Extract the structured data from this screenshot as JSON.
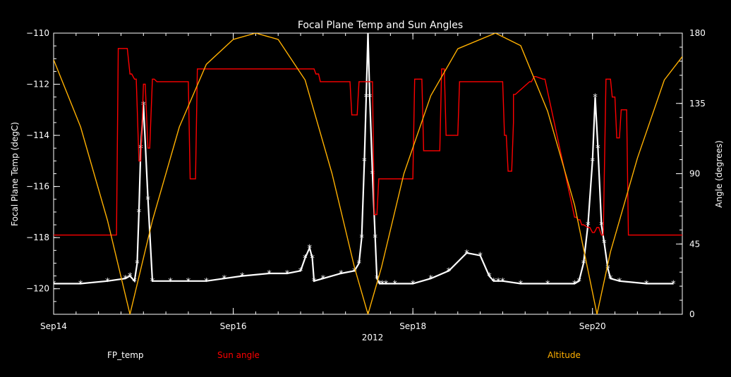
{
  "chart_data": {
    "type": "line",
    "title": "Focal Plane Temp and Sun Angles",
    "xlabel": "2012",
    "ylabel_left": "Focal Plane Temp (degC)",
    "ylabel_right": "Angle (degrees)",
    "x_range": [
      14.0,
      21.0
    ],
    "ylim_left": [
      -121,
      -110
    ],
    "ylim_right": [
      0,
      180
    ],
    "x_ticks": [
      {
        "value": 14.0,
        "label": "Sep14"
      },
      {
        "value": 16.0,
        "label": "Sep16"
      },
      {
        "value": 18.0,
        "label": "Sep18"
      },
      {
        "value": 20.0,
        "label": "Sep20"
      }
    ],
    "x_minor_step": 0.25,
    "y_left_ticks": [
      -120,
      -118,
      -116,
      -114,
      -112,
      -110
    ],
    "y_left_tick_labels": [
      "−120",
      "−118",
      "−116",
      "−114",
      "−112",
      "−110"
    ],
    "y_left_minor_step": 0.5,
    "y_right_ticks": [
      0,
      45,
      90,
      135,
      180
    ],
    "y_right_tick_labels": [
      "0",
      "45",
      "90",
      "135",
      "180"
    ],
    "y_right_minor_step": 9,
    "grid": false,
    "series": [
      {
        "name": "FP_temp",
        "color": "#ffffff",
        "axis": "left",
        "marker": "asterisk",
        "x": [
          14.0,
          14.3,
          14.6,
          14.8,
          14.85,
          14.9,
          14.93,
          14.95,
          14.97,
          15.0,
          15.05,
          15.1,
          15.3,
          15.5,
          15.7,
          15.9,
          16.1,
          16.4,
          16.6,
          16.75,
          16.8,
          16.85,
          16.88,
          16.9,
          17.0,
          17.2,
          17.35,
          17.4,
          17.43,
          17.46,
          17.48,
          17.5,
          17.52,
          17.55,
          17.58,
          17.6,
          17.63,
          17.66,
          17.7,
          17.8,
          18.0,
          18.2,
          18.4,
          18.6,
          18.75,
          18.85,
          18.9,
          18.95,
          19.0,
          19.2,
          19.5,
          19.8,
          19.85,
          19.9,
          19.95,
          20.0,
          20.03,
          20.06,
          20.1,
          20.13,
          20.17,
          20.2,
          20.3,
          20.6,
          20.9
        ],
        "y": [
          -119.8,
          -119.8,
          -119.7,
          -119.6,
          -119.5,
          -119.7,
          -119.0,
          -117.0,
          -114.5,
          -112.8,
          -116.5,
          -119.7,
          -119.7,
          -119.7,
          -119.7,
          -119.6,
          -119.5,
          -119.4,
          -119.4,
          -119.3,
          -118.8,
          -118.4,
          -118.8,
          -119.7,
          -119.6,
          -119.4,
          -119.3,
          -119.0,
          -118.0,
          -115.0,
          -112.5,
          -110.0,
          -112.5,
          -115.5,
          -118.0,
          -119.6,
          -119.8,
          -119.8,
          -119.8,
          -119.8,
          -119.8,
          -119.6,
          -119.3,
          -118.6,
          -118.7,
          -119.5,
          -119.7,
          -119.7,
          -119.7,
          -119.8,
          -119.8,
          -119.8,
          -119.7,
          -119.0,
          -117.5,
          -115.0,
          -112.5,
          -114.5,
          -117.5,
          -118.2,
          -119.2,
          -119.6,
          -119.7,
          -119.8,
          -119.8
        ]
      },
      {
        "name": "Sun angle",
        "color": "#ff0000",
        "axis": "left",
        "marker": "none",
        "x": [
          14.0,
          14.7,
          14.72,
          14.8,
          14.82,
          14.85,
          14.87,
          14.9,
          14.92,
          14.95,
          14.97,
          15.0,
          15.02,
          15.05,
          15.07,
          15.1,
          15.12,
          15.15,
          15.5,
          15.52,
          15.58,
          15.6,
          16.9,
          16.92,
          16.95,
          16.97,
          17.3,
          17.32,
          17.38,
          17.4,
          17.55,
          17.57,
          17.6,
          17.62,
          18.0,
          18.02,
          18.1,
          18.12,
          18.3,
          18.32,
          18.35,
          18.37,
          18.5,
          18.52,
          19.0,
          19.02,
          19.04,
          19.06,
          19.1,
          19.12,
          19.12,
          19.14,
          19.3,
          19.32,
          19.35,
          19.37,
          19.45,
          19.47,
          19.8,
          19.82,
          19.84,
          19.86,
          19.88,
          19.9,
          19.95,
          19.97,
          20.0,
          20.02,
          20.05,
          20.07,
          20.1,
          20.12,
          20.15,
          20.17,
          20.2,
          20.22,
          20.25,
          20.27,
          20.3,
          20.32,
          20.38,
          20.4,
          21.0
        ],
        "y": [
          -117.9,
          -117.9,
          -110.6,
          -110.6,
          -110.6,
          -111.6,
          -111.6,
          -111.8,
          -111.8,
          -115.0,
          -115.0,
          -112.0,
          -112.0,
          -114.5,
          -114.5,
          -111.8,
          -111.8,
          -111.9,
          -111.9,
          -115.7,
          -115.7,
          -111.4,
          -111.4,
          -111.6,
          -111.6,
          -111.9,
          -111.9,
          -113.2,
          -113.2,
          -111.9,
          -111.9,
          -117.1,
          -117.1,
          -115.7,
          -115.7,
          -111.8,
          -111.8,
          -114.6,
          -114.6,
          -111.4,
          -111.4,
          -114.0,
          -114.0,
          -111.9,
          -111.9,
          -114.0,
          -114.0,
          -115.4,
          -115.4,
          -113.5,
          -112.4,
          -112.4,
          -111.9,
          -111.9,
          -111.7,
          -111.7,
          -111.8,
          -111.8,
          -117.2,
          -117.2,
          -117.3,
          -117.3,
          -117.5,
          -117.5,
          -117.6,
          -117.6,
          -117.8,
          -117.8,
          -117.6,
          -117.6,
          -117.9,
          -117.9,
          -111.8,
          -111.8,
          -111.8,
          -112.5,
          -112.5,
          -114.1,
          -114.1,
          -113.0,
          -113.0,
          -117.9,
          -117.9
        ]
      },
      {
        "name": "Altitude",
        "color": "#ffb000",
        "axis": "right",
        "marker": "none",
        "orbit_apogee_times": [
          16.25,
          18.92
        ],
        "x": [
          14.0,
          14.3,
          14.6,
          14.85,
          15.1,
          15.4,
          15.7,
          16.0,
          16.25,
          16.5,
          16.8,
          17.1,
          17.35,
          17.5,
          17.65,
          17.9,
          18.2,
          18.5,
          18.92,
          19.2,
          19.5,
          19.8,
          20.05,
          20.2,
          20.5,
          20.8,
          21.0
        ],
        "y": [
          163,
          120,
          60,
          0,
          60,
          120,
          160,
          176,
          180,
          176,
          150,
          90,
          30,
          0,
          30,
          90,
          140,
          170,
          180,
          172,
          130,
          70,
          0,
          40,
          100,
          150,
          165
        ]
      }
    ],
    "legend": [
      {
        "label": "FP_temp",
        "color": "#ffffff"
      },
      {
        "label": "Sun angle",
        "color": "#ff0000"
      },
      {
        "label": "Altitude",
        "color": "#ffb000"
      }
    ]
  }
}
